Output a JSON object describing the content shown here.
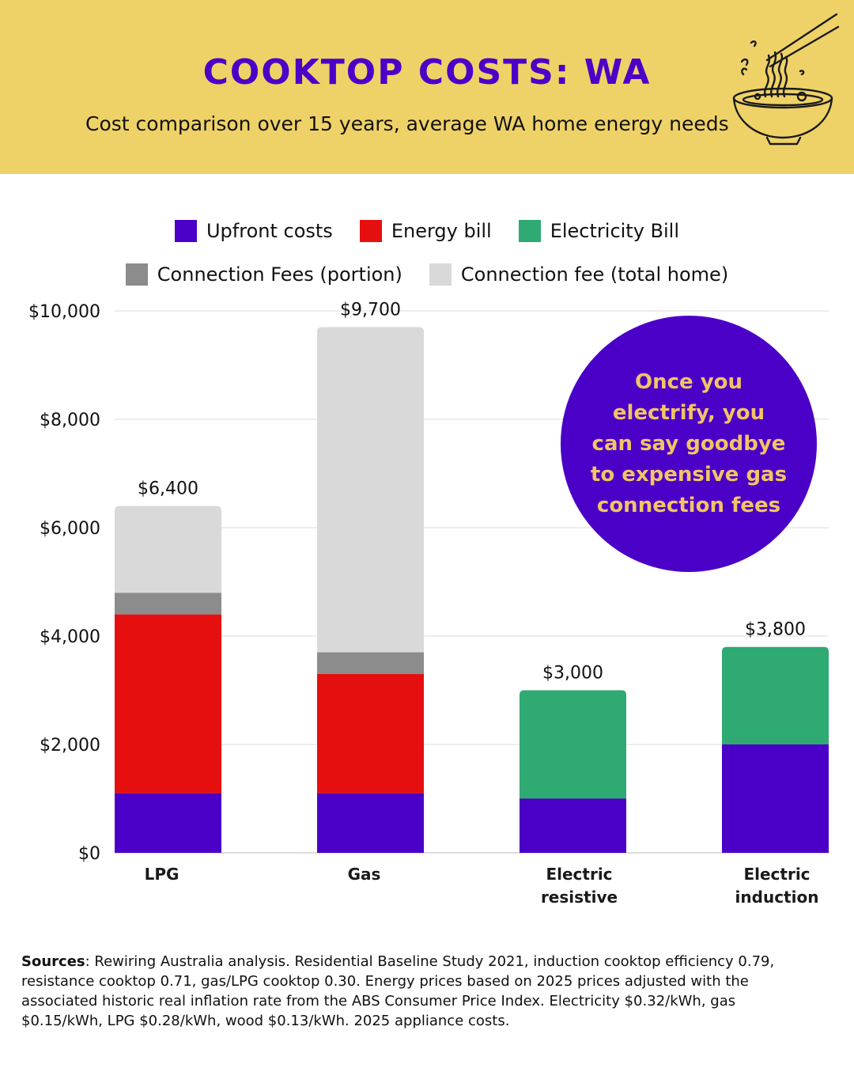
{
  "header": {
    "title": "COOKTOP COSTS: WA",
    "subtitle": "Cost comparison over 15 years, average WA home energy needs",
    "illustration_icon": "noodle-bowl-icon"
  },
  "colors": {
    "header_bg": "#efd267",
    "upfront": "#4b00c8",
    "energy_bill": "#e60f0f",
    "electricity_bill": "#2eaa72",
    "connection_portion": "#8c8c8c",
    "connection_total": "#d9d9d9",
    "callout_bg": "#4b00c8",
    "callout_text": "#f2c464"
  },
  "legend": {
    "row1": [
      {
        "label": "Upfront costs",
        "color": "#4b00c8"
      },
      {
        "label": "Energy bill",
        "color": "#e60f0f"
      },
      {
        "label": "Electricity Bill",
        "color": "#2eaa72"
      }
    ],
    "row2": [
      {
        "label": "Connection Fees (portion)",
        "color": "#8c8c8c"
      },
      {
        "label": "Connection fee (total home)",
        "color": "#d9d9d9"
      }
    ]
  },
  "chart_data": {
    "type": "bar",
    "stacked": true,
    "categories": [
      [
        "LPG"
      ],
      [
        "Gas"
      ],
      [
        "Electric",
        "resistive"
      ],
      [
        "Electric",
        "induction"
      ]
    ],
    "series": [
      {
        "name": "Upfront costs",
        "color": "#4b00c8",
        "values": [
          1100,
          1100,
          1000,
          2000
        ]
      },
      {
        "name": "Energy bill",
        "color": "#e60f0f",
        "values": [
          3300,
          2200,
          0,
          0
        ]
      },
      {
        "name": "Electricity Bill",
        "color": "#2eaa72",
        "values": [
          0,
          0,
          2000,
          1800
        ]
      },
      {
        "name": "Connection Fees (portion)",
        "color": "#8c8c8c",
        "values": [
          400,
          400,
          0,
          0
        ]
      },
      {
        "name": "Connection fee (total home)",
        "color": "#d9d9d9",
        "values": [
          1600,
          6000,
          0,
          0
        ]
      }
    ],
    "totals": [
      "$6,400",
      "$9,700",
      "$3,000",
      "$3,800"
    ],
    "y_ticks": [
      {
        "value": 0,
        "label": "$0"
      },
      {
        "value": 2000,
        "label": "$2,000"
      },
      {
        "value": 4000,
        "label": "$4,000"
      },
      {
        "value": 6000,
        "label": "$6,000"
      },
      {
        "value": 8000,
        "label": "$8,000"
      },
      {
        "value": 10000,
        "label": "$10,000"
      }
    ],
    "ylim": [
      0,
      10000
    ],
    "grid": true
  },
  "callout": {
    "text": "Once you electrify, you can say goodbye to expensive gas connection fees"
  },
  "sources": {
    "label": "Sources",
    "text": ": Rewiring Australia analysis. Residential Baseline Study 2021, induction cooktop efficiency 0.79, resistance cooktop 0.71, gas/LPG cooktop 0.30. Energy prices based on 2025 prices adjusted with the associated historic real inflation rate from the ABS Consumer Price Index. Electricity $0.32/kWh, gas $0.15/kWh, LPG $0.28/kWh, wood $0.13/kWh. 2025 appliance costs."
  }
}
